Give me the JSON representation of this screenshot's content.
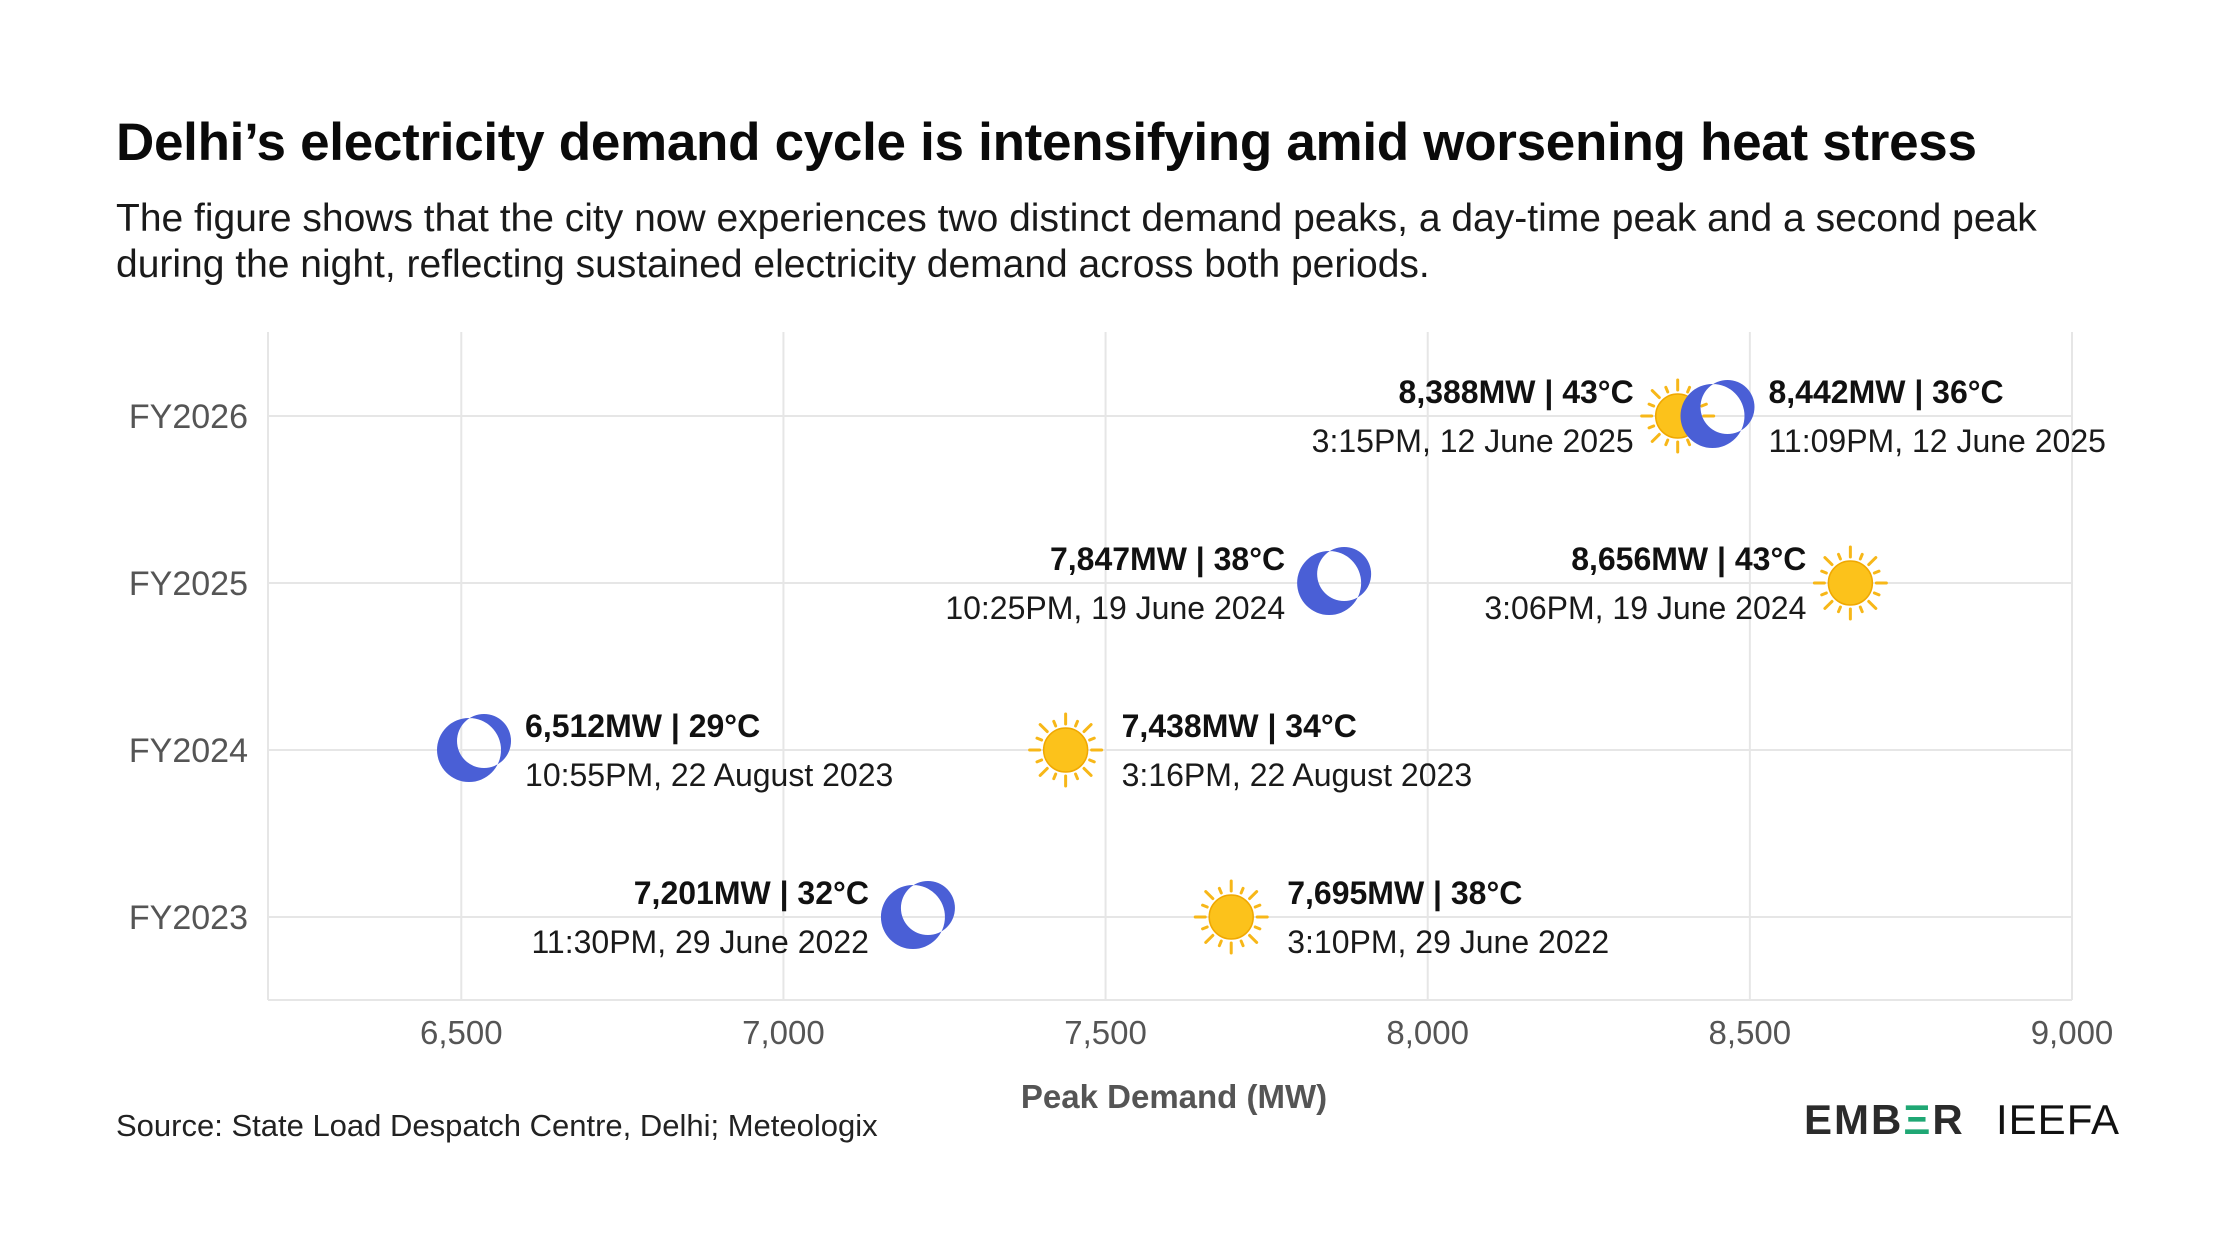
{
  "title": "Delhi’s electricity demand cycle is intensifying amid worsening heat stress",
  "subtitle": "The figure shows that the city now experiences two distinct demand peaks, a day-time peak and a second peak during the night, reflecting sustained electricity demand across both periods.",
  "source": "Source: State Load Despatch Centre, Delhi; Meteologix",
  "logos": {
    "ember_pre": "EMB",
    "ember_accent": "Ξ",
    "ember_post": "R",
    "ieefa": "IEEFA"
  },
  "colors": {
    "moon": "#4a5fd6",
    "sun": "#f7b718",
    "sun_core": "#fcc21b",
    "grid": "#e6e6e6",
    "axis_text": "#555555"
  },
  "chart_data": {
    "type": "scatter",
    "xlabel": "Peak Demand (MW)",
    "xlim": [
      6200,
      9000
    ],
    "x_ticks": [
      6500,
      7000,
      7500,
      8000,
      8500,
      9000
    ],
    "x_tick_labels": [
      "6,500",
      "7,000",
      "7,500",
      "8,000",
      "8,500",
      "9,000"
    ],
    "categories": [
      "FY2026",
      "FY2025",
      "FY2024",
      "FY2023"
    ],
    "grid": true,
    "points": [
      {
        "year": "FY2026",
        "type": "day",
        "x": 8388,
        "value_label": "8,388MW | 43°C",
        "time_label": "3:15PM, 12 June 2025",
        "label_side": "left"
      },
      {
        "year": "FY2026",
        "type": "night",
        "x": 8442,
        "value_label": "8,442MW | 36°C",
        "time_label": "11:09PM, 12 June 2025",
        "label_side": "right"
      },
      {
        "year": "FY2025",
        "type": "night",
        "x": 7847,
        "value_label": "7,847MW | 38°C",
        "time_label": "10:25PM, 19 June 2024",
        "label_side": "left"
      },
      {
        "year": "FY2025",
        "type": "day",
        "x": 8656,
        "value_label": "8,656MW | 43°C",
        "time_label": "3:06PM, 19 June 2024",
        "label_side": "left"
      },
      {
        "year": "FY2024",
        "type": "night",
        "x": 6512,
        "value_label": "6,512MW | 29°C",
        "time_label": "10:55PM, 22 August 2023",
        "label_side": "right"
      },
      {
        "year": "FY2024",
        "type": "day",
        "x": 7438,
        "value_label": "7,438MW | 34°C",
        "time_label": "3:16PM, 22 August 2023",
        "label_side": "right"
      },
      {
        "year": "FY2023",
        "type": "night",
        "x": 7201,
        "value_label": "7,201MW | 32°C",
        "time_label": "11:30PM, 29 June 2022",
        "label_side": "left"
      },
      {
        "year": "FY2023",
        "type": "day",
        "x": 7695,
        "value_label": "7,695MW | 38°C",
        "time_label": "3:10PM, 29 June 2022",
        "label_side": "right"
      }
    ]
  }
}
